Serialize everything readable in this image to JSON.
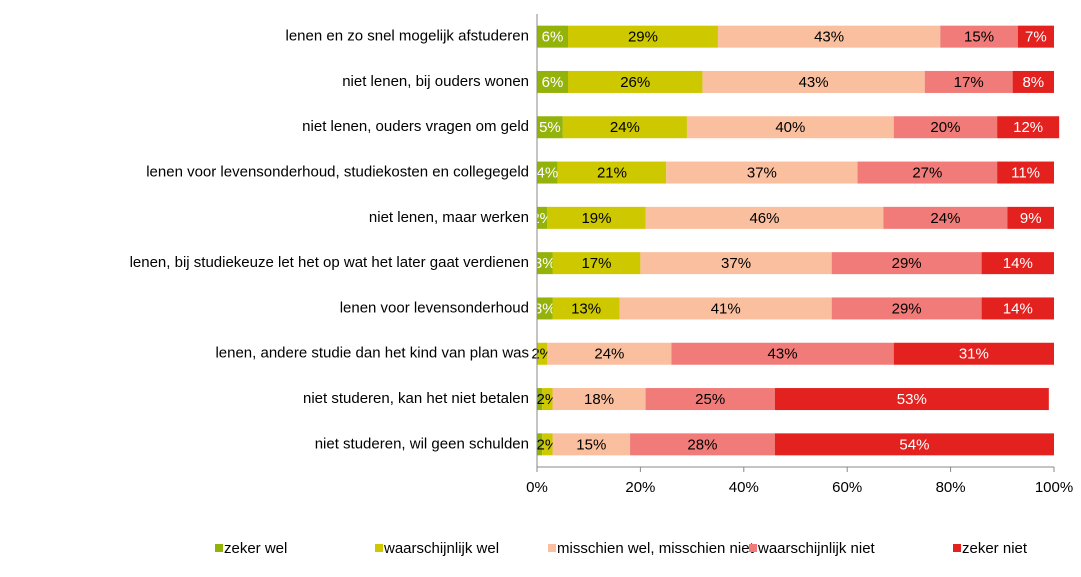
{
  "chart_data": {
    "type": "stacked-bar-horizontal",
    "categories": [
      "lenen en zo snel mogelijk afstuderen",
      "niet lenen,  bij ouders wonen",
      "niet lenen,  ouders vragen om geld",
      "lenen voor levensonderhoud,  studiekosten en collegegeld",
      "niet lenen,  maar werken",
      "lenen, bij studiekeuze  let het op wat het later gaat verdienen",
      "lenen voor levensonderhoud",
      "lenen,  andere studie dan het kind van plan was",
      "niet studeren,  kan het niet betalen",
      "niet studeren,  wil geen schulden"
    ],
    "series": [
      {
        "name": "zeker wel",
        "color": "#94b30a",
        "values": [
          6,
          6,
          5,
          4,
          2,
          3,
          3,
          0,
          1,
          1
        ],
        "value_labels": [
          "6%",
          "6%",
          "5%",
          "4%",
          "2%",
          "3%",
          "3%",
          null,
          null,
          null
        ]
      },
      {
        "name": "waarschijnlijk wel",
        "color": "#cdc800",
        "values": [
          29,
          26,
          24,
          21,
          19,
          17,
          13,
          2,
          2,
          2
        ],
        "value_labels": [
          "29%",
          "26%",
          "24%",
          "21%",
          "19%",
          "17%",
          "13%",
          "2%",
          "2%",
          "2%"
        ]
      },
      {
        "name": "misschien wel, misschien niet",
        "color": "#f9bf9f",
        "values": [
          43,
          43,
          40,
          37,
          46,
          37,
          41,
          24,
          18,
          15
        ],
        "value_labels": [
          "43%",
          "43%",
          "40%",
          "37%",
          "46%",
          "37%",
          "41%",
          "24%",
          "18%",
          "15%"
        ]
      },
      {
        "name": "waarschijnlijk niet",
        "color": "#f07b78",
        "values": [
          15,
          17,
          20,
          27,
          24,
          29,
          29,
          43,
          25,
          28
        ],
        "value_labels": [
          "15%",
          "17%",
          "20%",
          "27%",
          "24%",
          "29%",
          "29%",
          "43%",
          "25%",
          "28%"
        ]
      },
      {
        "name": "zeker niet",
        "color": "#e3211f",
        "values": [
          7,
          8,
          12,
          11,
          9,
          14,
          14,
          31,
          53,
          54
        ],
        "value_labels": [
          "7%",
          "8%",
          "12%",
          "11%",
          "9%",
          "14%",
          "14%",
          "31%",
          "53%",
          "54%"
        ]
      }
    ],
    "xlim": [
      0,
      100
    ],
    "xticks": [
      {
        "value": 0,
        "label": "0%"
      },
      {
        "value": 20,
        "label": "20%"
      },
      {
        "value": 40,
        "label": "40%"
      },
      {
        "value": 60,
        "label": "60%"
      },
      {
        "value": 80,
        "label": "80%"
      },
      {
        "value": 100,
        "label": "100%"
      }
    ],
    "legend": "bottom"
  }
}
